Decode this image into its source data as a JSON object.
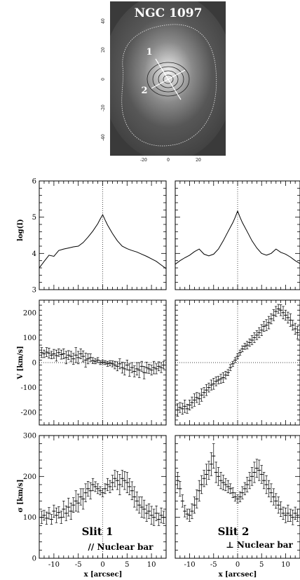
{
  "image_panel": {
    "title": "NGC 1097",
    "slit_labels": [
      "1",
      "2"
    ],
    "x_ticks": [
      "-20",
      "0",
      "20"
    ],
    "y_ticks": [
      "40",
      "20",
      "0",
      "-20",
      "-40"
    ]
  },
  "chart_data": [
    {
      "type": "line",
      "panel": "slit1-logI",
      "xlim": [
        -13,
        13
      ],
      "ylim": [
        3,
        6
      ],
      "ylabel": "log(I)",
      "x": [
        -13,
        -12,
        -11,
        -10,
        -9,
        -8,
        -7,
        -6,
        -5,
        -4,
        -3,
        -2,
        -1,
        -0.5,
        0,
        0.5,
        1,
        2,
        3,
        4,
        5,
        6,
        7,
        8,
        9,
        10,
        11,
        12,
        13
      ],
      "values": [
        3.6,
        3.78,
        3.95,
        3.92,
        4.08,
        4.12,
        4.15,
        4.18,
        4.2,
        4.3,
        4.45,
        4.62,
        4.82,
        4.95,
        5.07,
        4.92,
        4.78,
        4.55,
        4.35,
        4.2,
        4.13,
        4.08,
        4.04,
        3.98,
        3.92,
        3.85,
        3.78,
        3.68,
        3.58
      ]
    },
    {
      "type": "line",
      "panel": "slit2-logI",
      "xlim": [
        -13,
        13
      ],
      "ylim": [
        3,
        6
      ],
      "ylabel": "",
      "x": [
        -13,
        -12,
        -11,
        -10,
        -9,
        -8,
        -7,
        -6,
        -5,
        -4,
        -3,
        -2,
        -1,
        -0.5,
        0,
        0.5,
        1,
        2,
        3,
        4,
        5,
        6,
        7,
        8,
        9,
        10,
        11,
        12,
        13
      ],
      "values": [
        3.7,
        3.8,
        3.88,
        3.95,
        4.05,
        4.12,
        3.98,
        3.93,
        3.98,
        4.12,
        4.35,
        4.6,
        4.85,
        5.0,
        5.17,
        5.0,
        4.85,
        4.6,
        4.35,
        4.15,
        4.0,
        3.95,
        4.0,
        4.12,
        4.03,
        3.98,
        3.9,
        3.8,
        3.72
      ]
    },
    {
      "type": "scatter",
      "panel": "slit1-velocity",
      "xlim": [
        -13,
        13
      ],
      "ylim": [
        -250,
        250
      ],
      "ylabel": "V [km/s]",
      "x": [
        -12.5,
        -12,
        -11.5,
        -11,
        -10.5,
        -10,
        -9.5,
        -9,
        -8.5,
        -8,
        -7.5,
        -7,
        -6.5,
        -6,
        -5.5,
        -5,
        -4.5,
        -4,
        -3.5,
        -3,
        -2.5,
        -2,
        -1.5,
        -1,
        -0.5,
        0,
        0.5,
        1,
        1.5,
        2,
        2.5,
        3,
        3.5,
        4,
        4.5,
        5,
        5.5,
        6,
        6.5,
        7,
        7.5,
        8,
        8.5,
        9,
        9.5,
        10,
        10.5,
        11,
        11.5,
        12,
        12.5
      ],
      "values": [
        40,
        35,
        42,
        38,
        30,
        35,
        28,
        40,
        32,
        35,
        20,
        30,
        25,
        15,
        30,
        20,
        35,
        25,
        10,
        15,
        20,
        8,
        5,
        10,
        0,
        2,
        0,
        -5,
        -2,
        -5,
        -10,
        -15,
        -5,
        -20,
        -25,
        -10,
        -30,
        -20,
        -35,
        -25,
        -30,
        -15,
        -40,
        -20,
        -25,
        -30,
        -20,
        -25,
        -15,
        -20,
        -10
      ],
      "errors": [
        20,
        15,
        18,
        20,
        15,
        18,
        22,
        15,
        18,
        20,
        25,
        18,
        20,
        22,
        30,
        25,
        20,
        22,
        28,
        20,
        15,
        12,
        10,
        10,
        8,
        8,
        8,
        10,
        10,
        12,
        15,
        18,
        20,
        22,
        25,
        20,
        25,
        20,
        22,
        25,
        30,
        20,
        25,
        22,
        18,
        20,
        25,
        20,
        18,
        20,
        15
      ]
    },
    {
      "type": "scatter",
      "panel": "slit2-velocity",
      "xlim": [
        -13,
        13
      ],
      "ylim": [
        -250,
        250
      ],
      "ylabel": "",
      "x": [
        -12.5,
        -12,
        -11.5,
        -11,
        -10.5,
        -10,
        -9.5,
        -9,
        -8.5,
        -8,
        -7.5,
        -7,
        -6.5,
        -6,
        -5.5,
        -5,
        -4.5,
        -4,
        -3.5,
        -3,
        -2.5,
        -2,
        -1.5,
        -1,
        -0.5,
        0,
        0.5,
        1,
        1.5,
        2,
        2.5,
        3,
        3.5,
        4,
        4.5,
        5,
        5.5,
        6,
        6.5,
        7,
        7.5,
        8,
        8.5,
        9,
        9.5,
        10,
        10.5,
        11,
        11.5,
        12,
        12.5
      ],
      "values": [
        -190,
        -180,
        -185,
        -175,
        -185,
        -170,
        -160,
        -150,
        -140,
        -145,
        -130,
        -120,
        -110,
        -100,
        -90,
        -85,
        -75,
        -70,
        -65,
        -60,
        -50,
        -40,
        -20,
        -5,
        10,
        25,
        40,
        55,
        65,
        70,
        80,
        90,
        100,
        110,
        120,
        130,
        145,
        150,
        160,
        175,
        190,
        205,
        215,
        210,
        200,
        190,
        180,
        170,
        150,
        135,
        120
      ],
      "errors": [
        25,
        20,
        22,
        25,
        18,
        20,
        22,
        25,
        20,
        22,
        25,
        20,
        22,
        18,
        20,
        22,
        18,
        15,
        18,
        20,
        15,
        12,
        12,
        10,
        10,
        10,
        10,
        12,
        12,
        15,
        15,
        18,
        20,
        18,
        20,
        22,
        20,
        22,
        25,
        20,
        22,
        20,
        18,
        22,
        25,
        20,
        22,
        25,
        20,
        22,
        25
      ]
    },
    {
      "type": "scatter",
      "panel": "slit1-sigma",
      "xlim": [
        -13,
        13
      ],
      "ylim": [
        0,
        300
      ],
      "ylabel": "σ [km/s]",
      "annotations": [
        "Slit 1",
        "// Nuclear bar"
      ],
      "x": [
        -12.5,
        -12,
        -11.5,
        -11,
        -10.5,
        -10,
        -9.5,
        -9,
        -8.5,
        -8,
        -7.5,
        -7,
        -6.5,
        -6,
        -5.5,
        -5,
        -4.5,
        -4,
        -3.5,
        -3,
        -2.5,
        -2,
        -1.5,
        -1,
        -0.5,
        0,
        0.5,
        1,
        1.5,
        2,
        2.5,
        3,
        3.5,
        4,
        4.5,
        5,
        5.5,
        6,
        6.5,
        7,
        7.5,
        8,
        8.5,
        9,
        9.5,
        10,
        10.5,
        11,
        11.5,
        12,
        12.5
      ],
      "values": [
        100,
        105,
        98,
        110,
        95,
        115,
        105,
        112,
        100,
        120,
        110,
        125,
        115,
        130,
        140,
        135,
        150,
        145,
        160,
        170,
        165,
        180,
        175,
        170,
        165,
        160,
        170,
        180,
        175,
        185,
        195,
        190,
        180,
        195,
        190,
        185,
        175,
        165,
        150,
        140,
        130,
        125,
        120,
        110,
        115,
        105,
        100,
        110,
        95,
        105,
        100
      ],
      "errors": [
        15,
        12,
        15,
        14,
        12,
        15,
        18,
        14,
        15,
        20,
        18,
        22,
        20,
        18,
        25,
        22,
        20,
        25,
        22,
        18,
        20,
        15,
        12,
        12,
        10,
        10,
        12,
        15,
        15,
        18,
        20,
        22,
        25,
        20,
        22,
        25,
        20,
        22,
        25,
        22,
        20,
        25,
        22,
        20,
        18,
        22,
        20,
        18,
        15,
        18,
        15
      ]
    },
    {
      "type": "scatter",
      "panel": "slit2-sigma",
      "xlim": [
        -13,
        13
      ],
      "ylim": [
        0,
        300
      ],
      "ylabel": "",
      "annotations": [
        "Slit 2",
        "⊥ Nuclear bar"
      ],
      "x": [
        -12.5,
        -12,
        -11.5,
        -11,
        -10.5,
        -10,
        -9.5,
        -9,
        -8.5,
        -8,
        -7.5,
        -7,
        -6.5,
        -6,
        -5.5,
        -5,
        -4.5,
        -4,
        -3.5,
        -3,
        -2.5,
        -2,
        -1.5,
        -1,
        -0.5,
        0,
        0.5,
        1,
        1.5,
        2,
        2.5,
        3,
        3.5,
        4,
        4.5,
        5,
        5.5,
        6,
        6.5,
        7,
        7.5,
        8,
        8.5,
        9,
        9.5,
        10,
        10.5,
        11,
        11.5,
        12,
        12.5
      ],
      "values": [
        190,
        170,
        140,
        115,
        108,
        105,
        115,
        130,
        145,
        165,
        180,
        195,
        205,
        215,
        230,
        250,
        210,
        200,
        190,
        185,
        180,
        175,
        170,
        160,
        150,
        145,
        150,
        160,
        170,
        180,
        190,
        200,
        210,
        220,
        215,
        205,
        190,
        180,
        170,
        160,
        150,
        140,
        130,
        120,
        110,
        105,
        110,
        105,
        100,
        110,
        105
      ],
      "errors": [
        20,
        18,
        15,
        14,
        12,
        15,
        18,
        20,
        22,
        25,
        22,
        20,
        25,
        22,
        28,
        30,
        25,
        22,
        20,
        18,
        15,
        15,
        12,
        12,
        10,
        10,
        12,
        15,
        15,
        18,
        20,
        22,
        25,
        22,
        25,
        22,
        20,
        22,
        20,
        22,
        20,
        18,
        20,
        18,
        15,
        18,
        20,
        15,
        18,
        15,
        15
      ]
    }
  ],
  "shared": {
    "x_tick_labels": [
      "-10",
      "-5",
      "0",
      "5",
      "10"
    ],
    "xlabel": "x [arcsec]",
    "logI_ticks": [
      "3",
      "4",
      "5",
      "6"
    ],
    "v_ticks": [
      "-200",
      "-100",
      "0",
      "100",
      "200"
    ],
    "sigma_ticks": [
      "0",
      "100",
      "200",
      "300"
    ]
  }
}
